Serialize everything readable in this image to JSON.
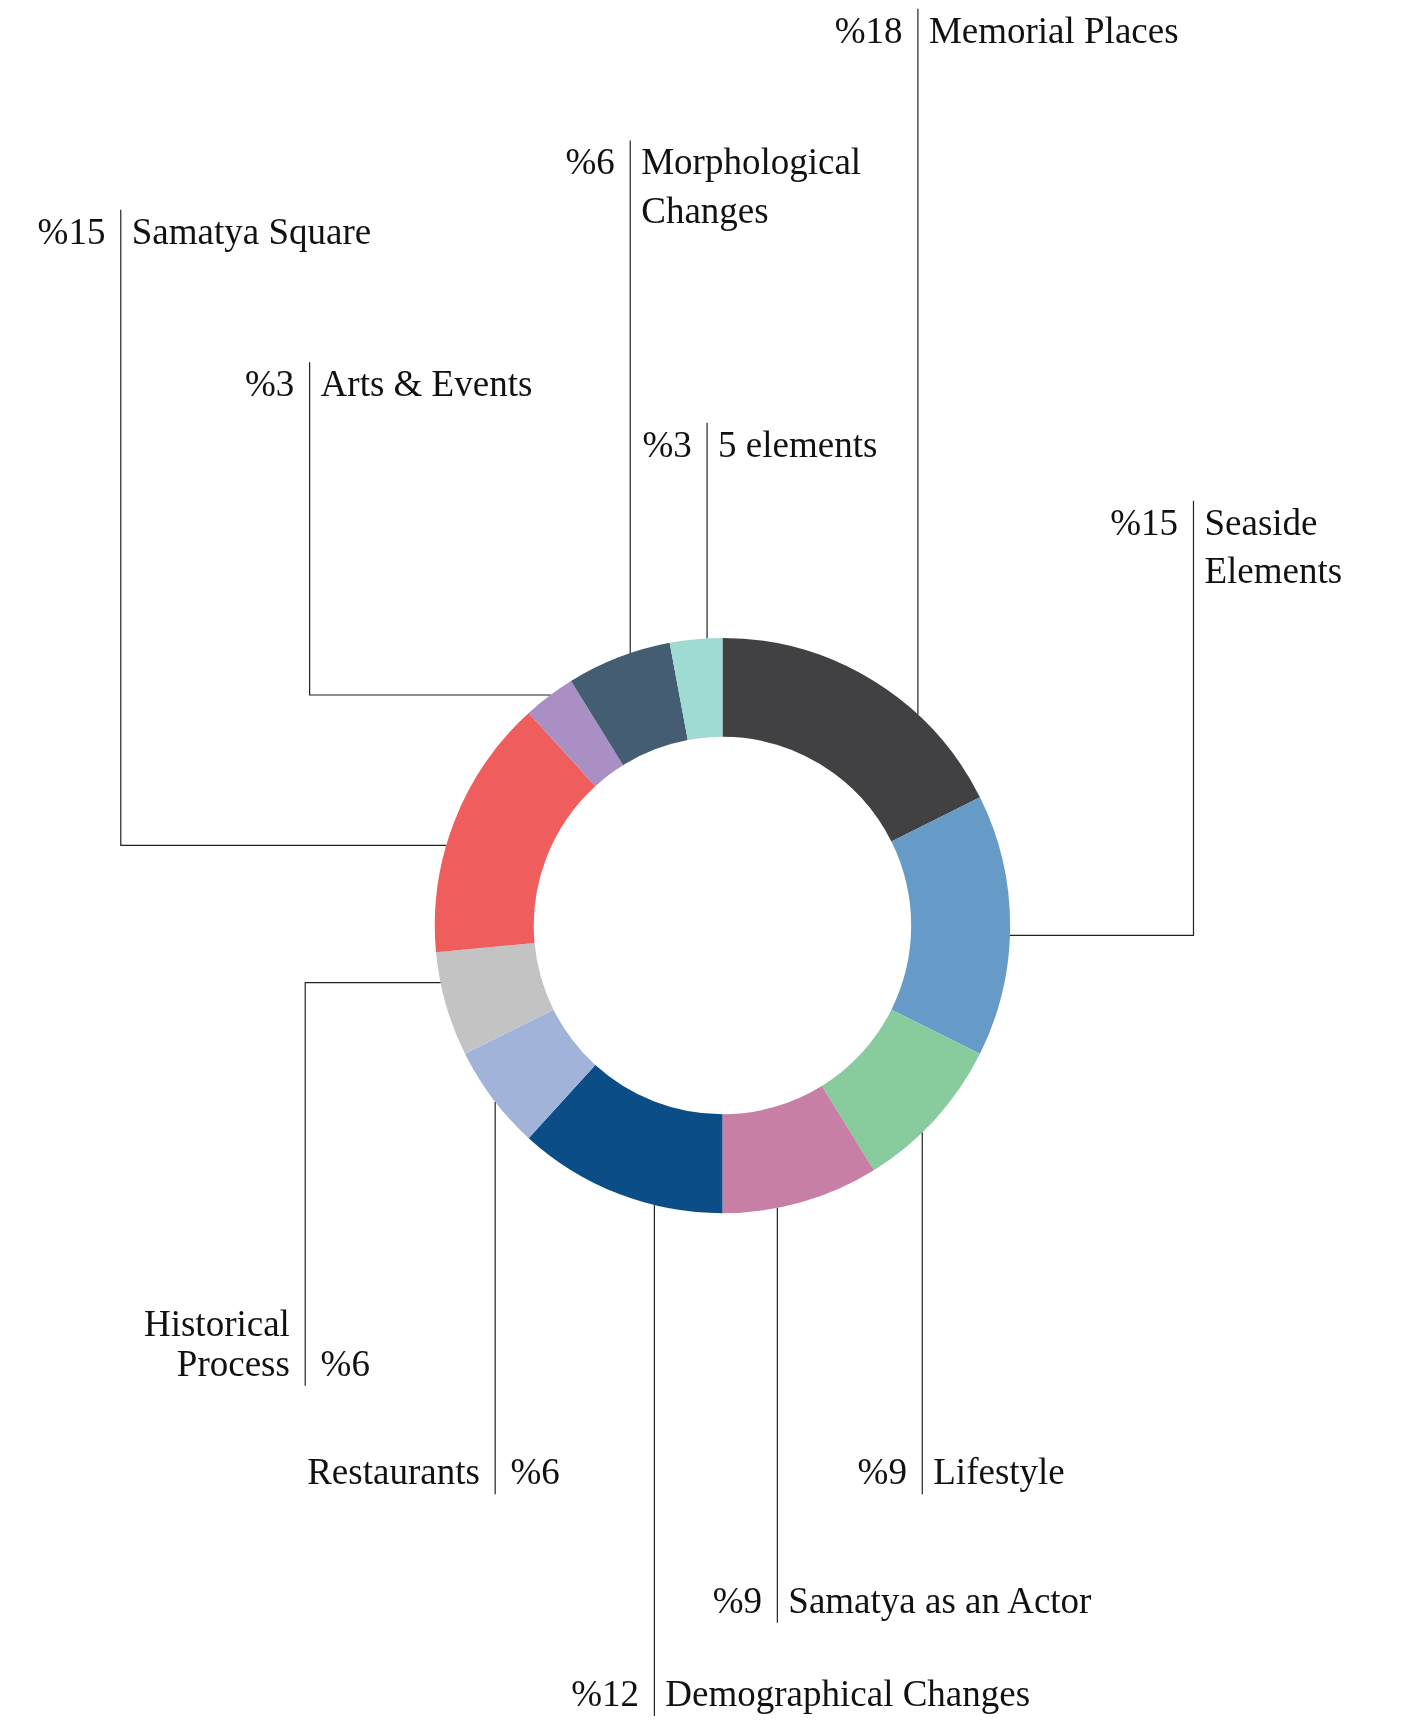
{
  "chart_data": {
    "type": "donut",
    "categories": [
      "Memorial Places",
      "Seaside Elements",
      "Lifestyle",
      "Samatya as an Actor",
      "Demographical Changes",
      "Restaurants",
      "Historical Process",
      "Samatya Square",
      "Arts & Events",
      "Morphological Changes",
      "5 elements"
    ],
    "values": [
      18,
      15,
      9,
      9,
      12,
      6,
      6,
      15,
      3,
      6,
      3
    ],
    "value_labels": [
      "%18",
      "%15",
      "%9",
      "%9",
      "%12",
      "%6",
      "%6",
      "%15",
      "%3",
      "%6",
      "%3"
    ],
    "colors": [
      "#414143",
      "#659bc6",
      "#88cc9e",
      "#c87fa6",
      "#0b4d86",
      "#a1b3d8",
      "#c3c3c3",
      "#f05d5d",
      "#a98fc3",
      "#445d72",
      "#9fdad3"
    ],
    "legend": false
  }
}
